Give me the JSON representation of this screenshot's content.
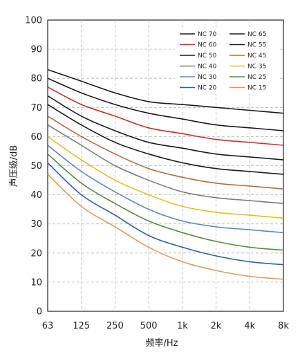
{
  "chart_data": {
    "type": "line",
    "xlabel": "频率/Hz",
    "ylabel": "声压级/dB",
    "x": [
      "63",
      "125",
      "250",
      "500",
      "1k",
      "2k",
      "4k",
      "8k"
    ],
    "ylim": [
      0,
      100
    ],
    "yticks": [
      0,
      10,
      20,
      30,
      40,
      50,
      60,
      70,
      80,
      90,
      100
    ],
    "grid": "dashed",
    "legend_position": "top-right",
    "series": [
      {
        "name": "NC 70",
        "color": "#1a1a1a",
        "values": [
          83,
          79,
          75,
          72,
          71,
          70,
          69,
          68
        ]
      },
      {
        "name": "NC 65",
        "color": "#1a1a1a",
        "values": [
          80,
          75,
          71,
          68,
          66,
          64,
          63,
          62
        ]
      },
      {
        "name": "NC 60",
        "color": "#d42a2a",
        "values": [
          77,
          71,
          67,
          63,
          61,
          59,
          58,
          57
        ]
      },
      {
        "name": "NC 55",
        "color": "#1a1a1a",
        "values": [
          74,
          67,
          62,
          58,
          56,
          54,
          53,
          52
        ]
      },
      {
        "name": "NC 50",
        "color": "#1a1a1a",
        "values": [
          71,
          64,
          58,
          54,
          51,
          49,
          48,
          47
        ]
      },
      {
        "name": "NC 45",
        "color": "#b86a38",
        "values": [
          67,
          60,
          54,
          49,
          46,
          44,
          43,
          42
        ]
      },
      {
        "name": "NC 40",
        "color": "#7a7a7a",
        "values": [
          64,
          57,
          50,
          45,
          41,
          39,
          38,
          37
        ]
      },
      {
        "name": "NC 35",
        "color": "#d9c21e",
        "values": [
          60,
          52,
          45,
          40,
          36,
          34,
          33,
          32
        ]
      },
      {
        "name": "NC 30",
        "color": "#5b86c9",
        "values": [
          57,
          48,
          41,
          35,
          31,
          29,
          28,
          27
        ]
      },
      {
        "name": "NC 25",
        "color": "#4f8f3a",
        "values": [
          54,
          44,
          37,
          31,
          27,
          24,
          22,
          21
        ]
      },
      {
        "name": "NC 20",
        "color": "#2a5db8",
        "values": [
          51,
          40,
          33,
          26,
          22,
          19,
          17,
          16
        ]
      },
      {
        "name": "NC 15",
        "color": "#e09a55",
        "values": [
          47,
          36,
          29,
          22,
          17,
          14,
          12,
          11
        ]
      }
    ]
  }
}
